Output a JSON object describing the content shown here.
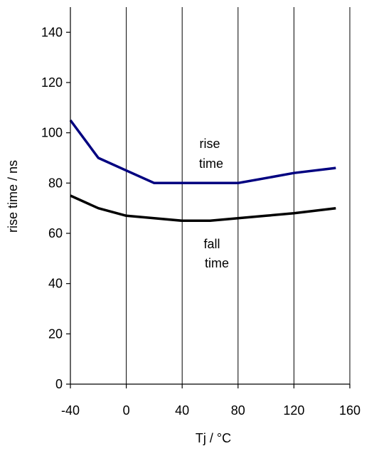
{
  "chart_data": {
    "type": "line",
    "title": "",
    "xlabel": "Tj / °C",
    "ylabel": "rise time / ns",
    "xlim": [
      -40,
      160
    ],
    "ylim": [
      0,
      150
    ],
    "xticks": [
      -40,
      0,
      40,
      80,
      120,
      160
    ],
    "yticks": [
      0,
      20,
      40,
      60,
      80,
      100,
      120,
      140
    ],
    "xtick_labels": [
      "-40",
      "0",
      "40",
      "80",
      "120",
      "160"
    ],
    "ytick_labels": [
      "0",
      "20",
      "40",
      "60",
      "80",
      "100",
      "120",
      "140"
    ],
    "grid": "vertical",
    "legend": "none",
    "series": [
      {
        "key": "rise",
        "color": "#000080",
        "x": [
          -40,
          -20,
          0,
          20,
          40,
          60,
          80,
          100,
          120,
          150
        ],
        "y": [
          105,
          90,
          85,
          80,
          80,
          80,
          80,
          82,
          84,
          86
        ]
      },
      {
        "key": "fall",
        "color": "#000000",
        "x": [
          -40,
          -20,
          0,
          20,
          40,
          60,
          80,
          100,
          120,
          150
        ],
        "y": [
          75,
          70,
          67,
          66,
          65,
          65,
          66,
          67,
          68,
          70
        ]
      }
    ],
    "annotations": [
      {
        "lines": [
          "rise",
          "time"
        ]
      },
      {
        "lines": [
          "fall",
          "time"
        ]
      }
    ]
  }
}
